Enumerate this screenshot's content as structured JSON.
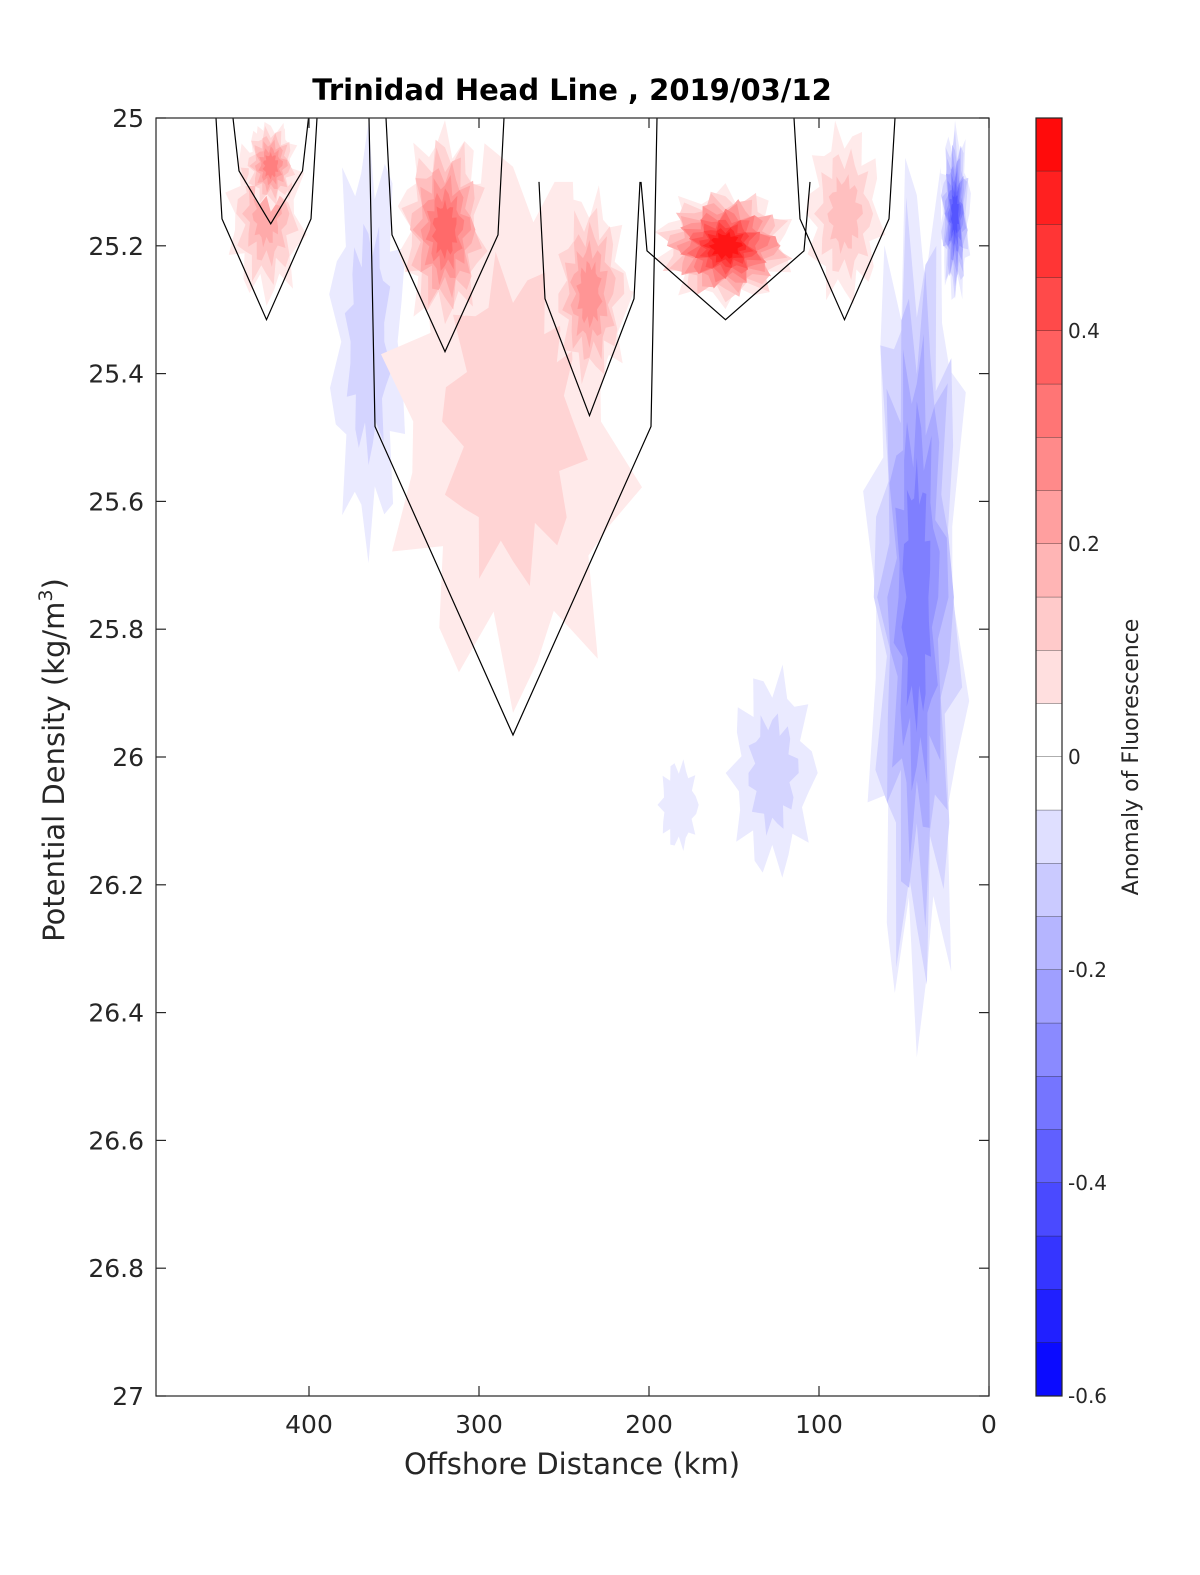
{
  "chart_data": {
    "type": "heatmap",
    "title": "Trinidad Head Line , 2019/03/12",
    "xlabel": "Offshore Distance (km)",
    "ylabel": "Potential Density (kg/m",
    "ylabel_sup": "3",
    "ylabel_close": ")",
    "xlim": [
      490,
      0
    ],
    "ylim": [
      25,
      27
    ],
    "y_reversed": true,
    "x_ticks": [
      400,
      300,
      200,
      100,
      0
    ],
    "y_ticks": [
      25,
      25.2,
      25.4,
      25.6,
      25.8,
      26,
      26.2,
      26.4,
      26.6,
      26.8,
      27
    ],
    "y_tick_labels": [
      "25",
      "25.2",
      "25.4",
      "25.6",
      "25.8",
      "26",
      "26.2",
      "26.4",
      "26.6",
      "26.8",
      "27"
    ],
    "colorbar": {
      "label": "Anomaly of Fluorescence",
      "range": [
        -0.6,
        0.6
      ],
      "ticks": [
        0.4,
        0.2,
        0,
        -0.2,
        -0.4,
        -0.6
      ],
      "tick_labels": [
        "0.4",
        "0.2",
        "0",
        "-0.2",
        "-0.4",
        "-0.6"
      ],
      "step": 0.05,
      "colormap": "blue-white-red",
      "negative_color": "#0000ff",
      "positive_color": "#ff0000"
    },
    "zero_contour": true,
    "regions": [
      {
        "name": "offshore-positive-patch",
        "level": 0.2,
        "x_km": [
          400,
          450
        ],
        "density": [
          25.0,
          25.3
        ]
      },
      {
        "name": "offshore-positive-core",
        "level": 0.3,
        "x_km": [
          405,
          440
        ],
        "density": [
          25.0,
          25.15
        ]
      },
      {
        "name": "negative-band-380km",
        "level": -0.1,
        "x_km": [
          340,
          390
        ],
        "density": [
          25.0,
          25.7
        ]
      },
      {
        "name": "main-positive-tongue",
        "level": 0.1,
        "x_km": [
          200,
          360
        ],
        "density": [
          25.0,
          25.95
        ]
      },
      {
        "name": "main-positive-core",
        "level": 0.35,
        "x_km": [
          290,
          350
        ],
        "density": [
          25.0,
          25.35
        ]
      },
      {
        "name": "mid-positive-core",
        "level": 0.25,
        "x_km": [
          210,
          260
        ],
        "density": [
          25.1,
          25.45
        ]
      },
      {
        "name": "nearshore-positive-max",
        "level": 0.55,
        "x_km": [
          110,
          200
        ],
        "density": [
          25.1,
          25.3
        ]
      },
      {
        "name": "nearshore-positive-edge",
        "level": 0.15,
        "x_km": [
          60,
          110
        ],
        "density": [
          25.0,
          25.3
        ]
      },
      {
        "name": "deep-negative-patch-110km",
        "level": -0.1,
        "x_km": [
          100,
          155
        ],
        "density": [
          25.85,
          26.2
        ]
      },
      {
        "name": "deep-negative-patch-190km",
        "level": -0.05,
        "x_km": [
          170,
          195
        ],
        "density": [
          26.0,
          26.15
        ]
      },
      {
        "name": "coastal-negative-band",
        "level": -0.3,
        "x_km": [
          10,
          75
        ],
        "density": [
          25.0,
          26.5
        ]
      },
      {
        "name": "coastal-negative-core",
        "level": -0.4,
        "x_km": [
          10,
          30
        ],
        "density": [
          25.0,
          25.3
        ]
      }
    ],
    "missing_data_region": {
      "x_km": [
        108,
        275
      ],
      "density": [
        25.0,
        25.1
      ]
    }
  }
}
